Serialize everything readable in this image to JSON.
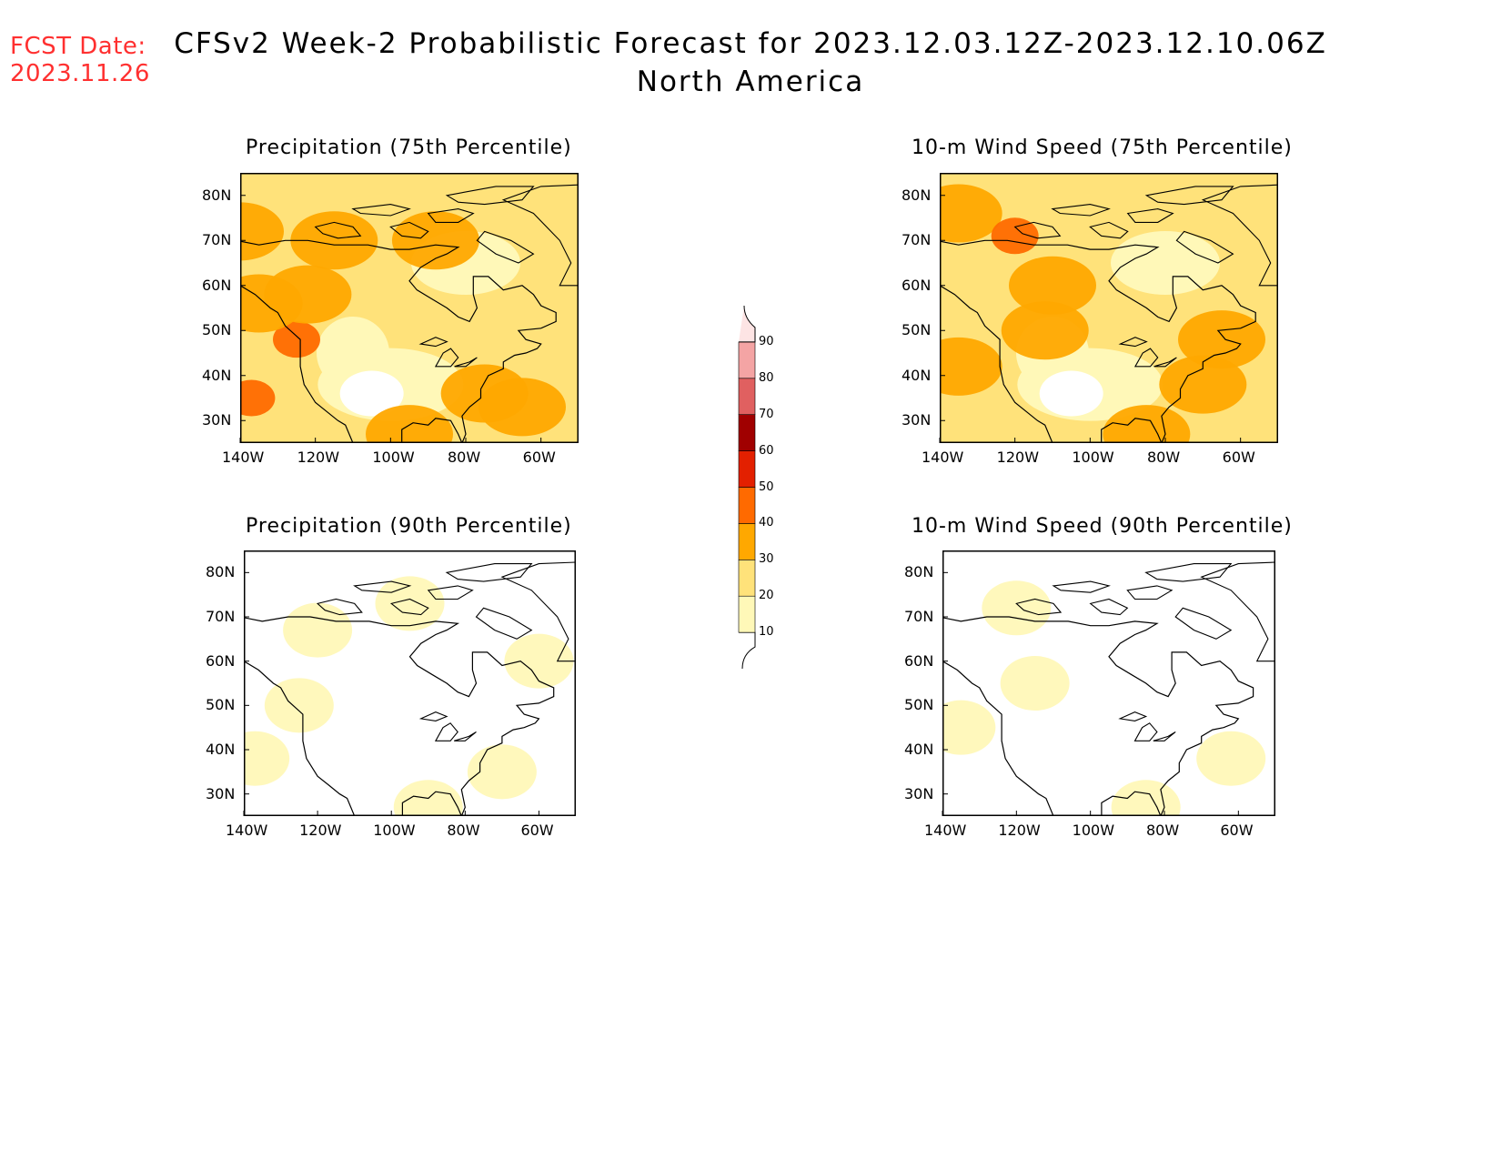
{
  "header": {
    "fcst_line1": "FCST Date:",
    "fcst_line2": "2023.11.26",
    "title_line1": "CFSv2 Week-2 Probabilistic Forecast for 2023.12.03.12Z-2023.12.10.06Z",
    "title_line2": "North America"
  },
  "colors": {
    "fcst_text": "#ff3030",
    "levels": [
      "#ffffff",
      "#fff8b8",
      "#ffe27a",
      "#ffa800",
      "#ff6a00",
      "#e32000",
      "#a00000",
      "#e06060",
      "#f4a4a4",
      "#fde4e4"
    ]
  },
  "colorbar": {
    "ticks": [
      "10",
      "20",
      "30",
      "40",
      "50",
      "60",
      "70",
      "80",
      "90"
    ]
  },
  "panels": [
    {
      "title": "Precipitation (75th Percentile)",
      "lat_labels": [
        "80N",
        "70N",
        "60N",
        "50N",
        "40N",
        "30N"
      ],
      "lon_labels": [
        "140W",
        "120W",
        "100W",
        "80W",
        "60W"
      ],
      "regions": [
        {
          "lon": -88,
          "lat": 70,
          "level": 3
        },
        {
          "lon": -115,
          "lat": 70,
          "level": 3
        },
        {
          "lon": -125,
          "lat": 48,
          "level": 4
        },
        {
          "lon": -135,
          "lat": 56,
          "level": 3
        },
        {
          "lon": -137,
          "lat": 35,
          "level": 4
        },
        {
          "lon": -65,
          "lat": 33,
          "level": 3
        },
        {
          "lon": -75,
          "lat": 36,
          "level": 3
        },
        {
          "lon": -95,
          "lat": 27,
          "level": 3
        },
        {
          "lon": -140,
          "lat": 72,
          "level": 3
        },
        {
          "lon": -122,
          "lat": 58,
          "level": 3
        }
      ]
    },
    {
      "title": "10-m Wind Speed (75th Percentile)",
      "lat_labels": [
        "80N",
        "70N",
        "60N",
        "50N",
        "40N",
        "30N"
      ],
      "lon_labels": [
        "140W",
        "120W",
        "100W",
        "80W",
        "60W"
      ],
      "regions": [
        {
          "lon": -135,
          "lat": 76,
          "level": 3
        },
        {
          "lon": -120,
          "lat": 71,
          "level": 4
        },
        {
          "lon": -135,
          "lat": 42,
          "level": 3
        },
        {
          "lon": -112,
          "lat": 50,
          "level": 3
        },
        {
          "lon": -70,
          "lat": 38,
          "level": 3
        },
        {
          "lon": -85,
          "lat": 27,
          "level": 3
        },
        {
          "lon": -110,
          "lat": 60,
          "level": 3
        },
        {
          "lon": -65,
          "lat": 48,
          "level": 3
        }
      ]
    },
    {
      "title": "Precipitation (90th Percentile)",
      "lat_labels": [
        "80N",
        "70N",
        "60N",
        "50N",
        "40N",
        "30N"
      ],
      "lon_labels": [
        "140W",
        "120W",
        "100W",
        "80W",
        "60W"
      ],
      "regions": [
        {
          "lon": -95,
          "lat": 73,
          "level": 1
        },
        {
          "lon": -125,
          "lat": 50,
          "level": 1
        },
        {
          "lon": -137,
          "lat": 38,
          "level": 1
        },
        {
          "lon": -70,
          "lat": 35,
          "level": 1
        },
        {
          "lon": -120,
          "lat": 67,
          "level": 1
        },
        {
          "lon": -90,
          "lat": 27,
          "level": 1
        },
        {
          "lon": -60,
          "lat": 60,
          "level": 1
        }
      ]
    },
    {
      "title": "10-m Wind Speed (90th Percentile)",
      "lat_labels": [
        "80N",
        "70N",
        "60N",
        "50N",
        "40N",
        "30N"
      ],
      "lon_labels": [
        "140W",
        "120W",
        "100W",
        "80W",
        "60W"
      ],
      "regions": [
        {
          "lon": -135,
          "lat": 45,
          "level": 1
        },
        {
          "lon": -120,
          "lat": 72,
          "level": 1
        },
        {
          "lon": -62,
          "lat": 38,
          "level": 1
        },
        {
          "lon": -85,
          "lat": 27,
          "level": 1
        },
        {
          "lon": -115,
          "lat": 55,
          "level": 1
        }
      ]
    }
  ]
}
